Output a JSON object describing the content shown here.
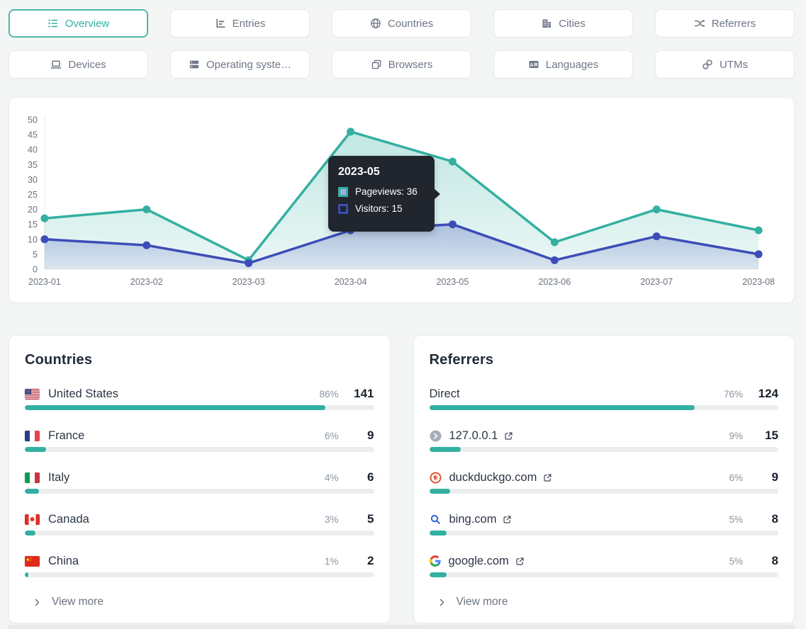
{
  "colors": {
    "accent_teal": "#33b0a1",
    "series_blue": "#3d4db7",
    "tooltip_background": "#20252e"
  },
  "tabs": {
    "row1": [
      {
        "label": "Overview",
        "icon": "overview-list-icon",
        "active": true
      },
      {
        "label": "Entries",
        "icon": "entries-bar-chart-icon",
        "active": false
      },
      {
        "label": "Countries",
        "icon": "globe-icon",
        "active": false
      },
      {
        "label": "Cities",
        "icon": "buildings-icon",
        "active": false
      },
      {
        "label": "Referrers",
        "icon": "shuffle-icon",
        "active": false
      }
    ],
    "row2": [
      {
        "label": "Devices",
        "icon": "laptop-icon",
        "active": false
      },
      {
        "label": "Operating syste…",
        "icon": "server-stack-icon",
        "active": false
      },
      {
        "label": "Browsers",
        "icon": "windows-stack-icon",
        "active": false
      },
      {
        "label": "Languages",
        "icon": "translate-icon",
        "active": false
      },
      {
        "label": "UTMs",
        "icon": "link-icon",
        "active": false
      }
    ]
  },
  "chart_data": {
    "type": "area",
    "x": [
      "2023-01",
      "2023-02",
      "2023-03",
      "2023-04",
      "2023-05",
      "2023-06",
      "2023-07",
      "2023-08"
    ],
    "series": [
      {
        "name": "Pageviews",
        "color": "#33b0a1",
        "values": [
          17,
          20,
          3,
          46,
          36,
          9,
          20,
          13
        ]
      },
      {
        "name": "Visitors",
        "color": "#3d4db7",
        "values": [
          10,
          8,
          2,
          13,
          15,
          3,
          11,
          5
        ]
      }
    ],
    "ylim": [
      0,
      50
    ],
    "y_ticks": [
      0,
      5,
      10,
      15,
      20,
      25,
      30,
      35,
      40,
      45,
      50
    ],
    "grid": false,
    "legend_position": "none",
    "tooltip": {
      "title": "2023-05",
      "rows": [
        {
          "text": "Pageviews: 36",
          "color": "#33b0a1"
        },
        {
          "text": "Visitors: 15",
          "color": "#3d4db7"
        }
      ]
    }
  },
  "countries_card": {
    "title": "Countries",
    "rows": [
      {
        "icon": "flag-us-icon",
        "name": "United States",
        "percent": 86,
        "percent_label": "86%",
        "count": "141"
      },
      {
        "icon": "flag-fr-icon",
        "name": "France",
        "percent": 6,
        "percent_label": "6%",
        "count": "9"
      },
      {
        "icon": "flag-it-icon",
        "name": "Italy",
        "percent": 4,
        "percent_label": "4%",
        "count": "6"
      },
      {
        "icon": "flag-ca-icon",
        "name": "Canada",
        "percent": 3,
        "percent_label": "3%",
        "count": "5"
      },
      {
        "icon": "flag-cn-icon",
        "name": "China",
        "percent": 1,
        "percent_label": "1%",
        "count": "2"
      }
    ],
    "view_more_label": "View more"
  },
  "referrers_card": {
    "title": "Referrers",
    "rows": [
      {
        "icon": null,
        "name": "Direct",
        "external_link": false,
        "percent": 76,
        "percent_label": "76%",
        "count": "124"
      },
      {
        "icon": "default-favicon-icon",
        "name": "127.0.0.1",
        "external_link": true,
        "percent": 9,
        "percent_label": "9%",
        "count": "15"
      },
      {
        "icon": "duckduckgo-favicon-icon",
        "name": "duckduckgo.com",
        "external_link": true,
        "percent": 6,
        "percent_label": "6%",
        "count": "9"
      },
      {
        "icon": "bing-favicon-icon",
        "name": "bing.com",
        "external_link": true,
        "percent": 5,
        "percent_label": "5%",
        "count": "8"
      },
      {
        "icon": "google-favicon-icon",
        "name": "google.com",
        "external_link": true,
        "percent": 5,
        "percent_label": "5%",
        "count": "8"
      }
    ],
    "view_more_label": "View more"
  }
}
